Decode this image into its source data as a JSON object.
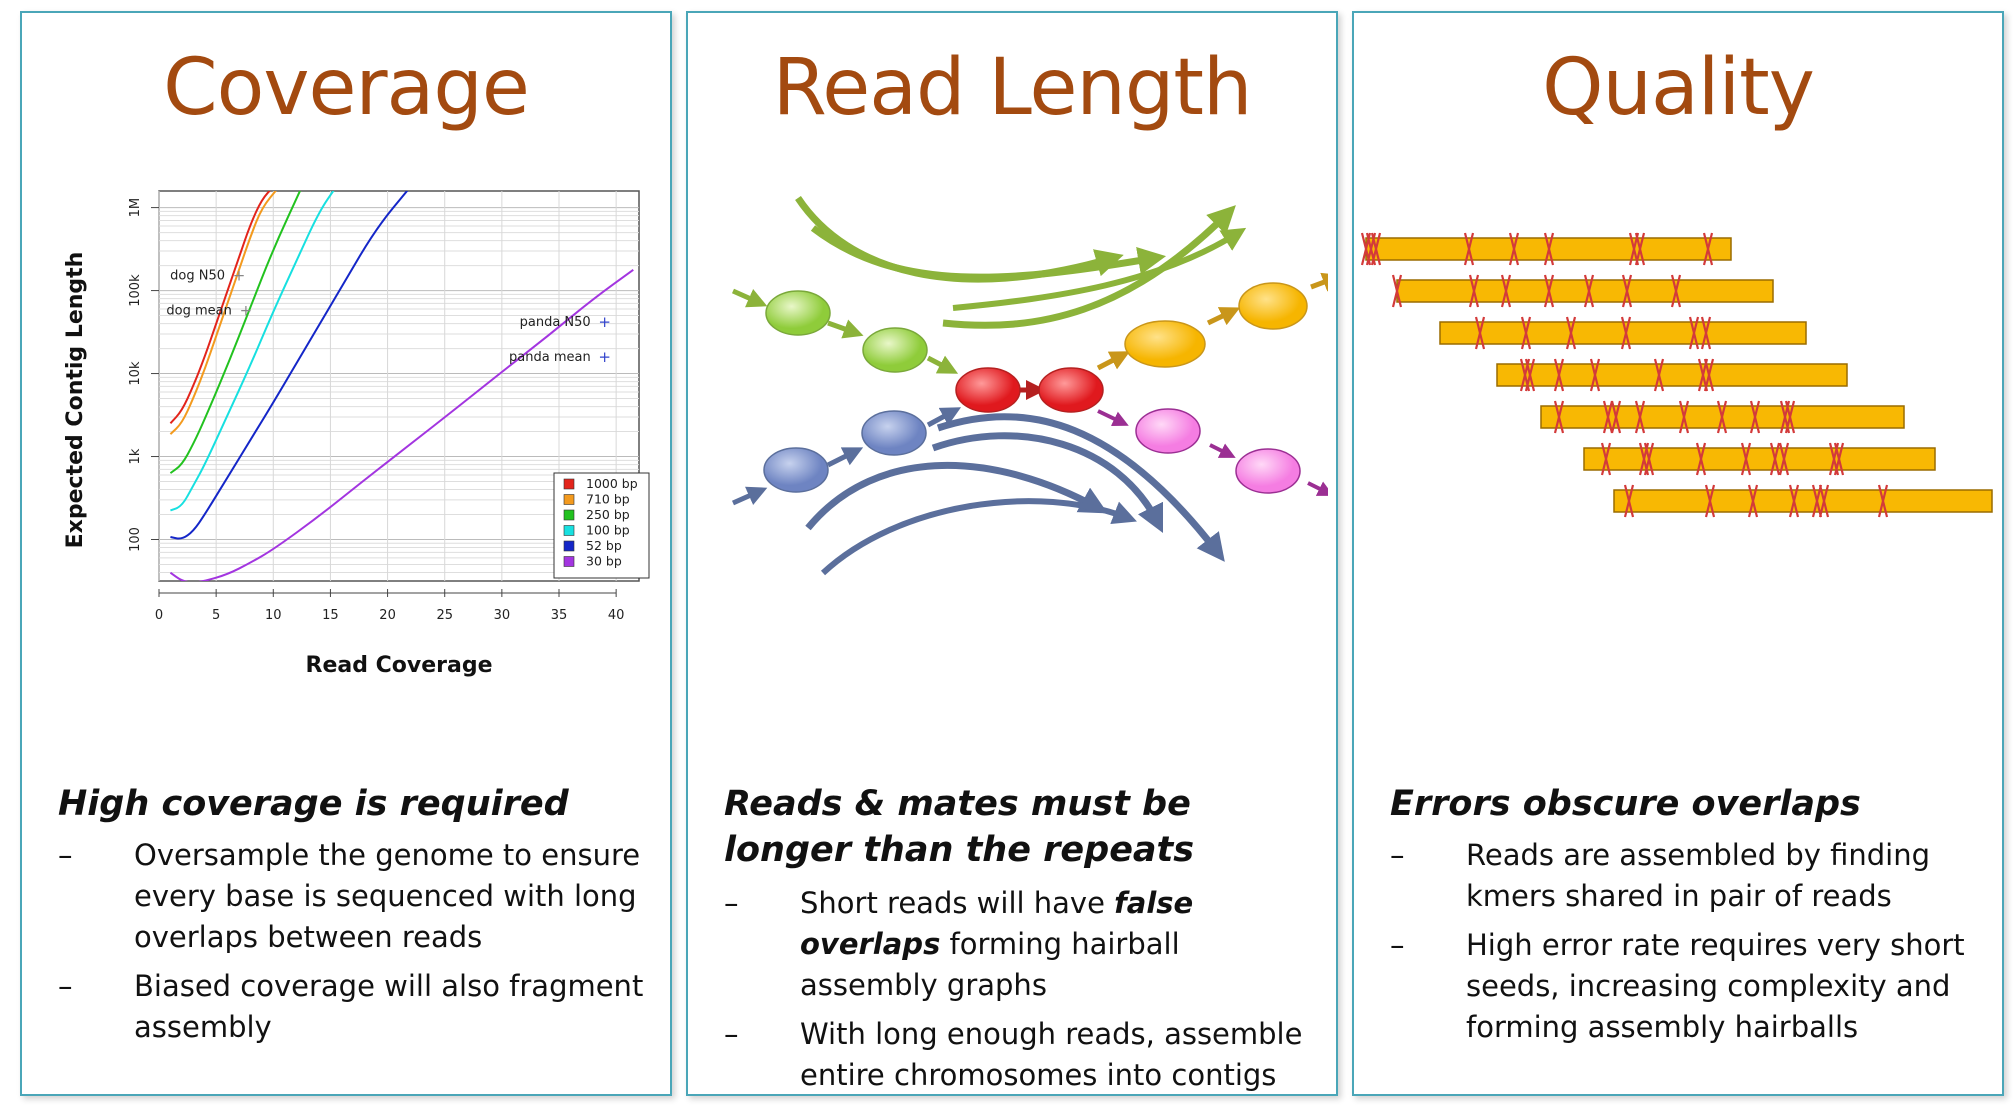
{
  "panels": {
    "coverage": {
      "title": "Coverage",
      "heading": "High coverage is required",
      "bullets": [
        "Oversample the genome to ensure every base is sequenced with long overlaps between reads",
        "Biased coverage will also fragment assembly"
      ]
    },
    "read_length": {
      "title": "Read Length",
      "heading": "Reads & mates must be longer than the repeats",
      "bullet1_pre": "Short reads will have ",
      "bullet1_em": "false overlaps",
      "bullet1_post": " forming hairball assembly graphs",
      "bullet2": "With long enough reads, assemble entire chromosomes into contigs"
    },
    "quality": {
      "title": "Quality",
      "heading": "Errors obscure overlaps",
      "bullets": [
        "Reads are assembled by finding kmers shared in pair of reads",
        "High error rate requires very short seeds, increasing complexity and forming assembly hairballs"
      ]
    }
  },
  "dash": "–",
  "chart_data": {
    "type": "line",
    "xlabel": "Read Coverage",
    "ylabel": "Expected Contig Length",
    "xlim": [
      0,
      42
    ],
    "ylim_log10": [
      1.5,
      6.2
    ],
    "xticks": [
      0,
      5,
      10,
      15,
      20,
      25,
      30,
      35,
      40
    ],
    "yticks": [
      {
        "label": "100",
        "log": 2
      },
      {
        "label": "1k",
        "log": 3
      },
      {
        "label": "10k",
        "log": 4
      },
      {
        "label": "100k",
        "log": 5
      },
      {
        "label": "1M",
        "log": 6
      }
    ],
    "grid": true,
    "legend_position": "bottom-right",
    "series": [
      {
        "name": "1000 bp",
        "color": "#e3241b",
        "x": [
          1,
          2,
          3,
          4,
          5,
          6,
          7,
          8,
          9,
          10
        ],
        "y_log10": [
          3.4,
          3.55,
          3.85,
          4.2,
          4.6,
          5.0,
          5.4,
          5.8,
          6.1,
          6.25
        ]
      },
      {
        "name": "710 bp",
        "color": "#f39a1e",
        "x": [
          1,
          2,
          3,
          4,
          5,
          6,
          7,
          8,
          9,
          10.5
        ],
        "y_log10": [
          3.27,
          3.4,
          3.7,
          4.05,
          4.45,
          4.85,
          5.25,
          5.65,
          6.0,
          6.25
        ]
      },
      {
        "name": "250 bp",
        "color": "#22c21f",
        "x": [
          1,
          2,
          3,
          4,
          6,
          8,
          10,
          12.5
        ],
        "y_log10": [
          2.8,
          2.9,
          3.15,
          3.45,
          4.1,
          4.8,
          5.5,
          6.25
        ]
      },
      {
        "name": "100 bp",
        "color": "#17e0e0",
        "x": [
          1,
          2,
          3,
          4,
          6,
          8,
          10,
          12,
          14,
          15.5
        ],
        "y_log10": [
          2.35,
          2.4,
          2.65,
          2.9,
          3.5,
          4.1,
          4.75,
          5.35,
          5.95,
          6.25
        ]
      },
      {
        "name": "52 bp",
        "color": "#1426c8",
        "x": [
          1,
          2,
          3,
          4,
          6,
          8,
          10,
          13,
          16,
          19,
          22
        ],
        "y_log10": [
          2.03,
          2.0,
          2.1,
          2.3,
          2.75,
          3.2,
          3.65,
          4.35,
          5.05,
          5.75,
          6.25
        ]
      },
      {
        "name": "30 bp",
        "color": "#a335e0",
        "x": [
          1,
          2,
          3,
          4,
          6,
          8,
          10,
          14,
          18,
          22,
          26,
          30,
          34,
          38,
          41.5
        ],
        "y_log10": [
          1.6,
          1.5,
          1.48,
          1.5,
          1.58,
          1.72,
          1.88,
          2.28,
          2.72,
          3.15,
          3.58,
          4.02,
          4.45,
          4.9,
          5.25
        ]
      }
    ],
    "annotations": [
      {
        "label": "dog N50",
        "x": 7,
        "y_log10": 5.18,
        "marker": "+"
      },
      {
        "label": "dog mean",
        "x": 7.6,
        "y_log10": 4.76,
        "marker": "+"
      },
      {
        "label": "panda N50",
        "x": 39,
        "y_log10": 4.62,
        "marker": "+"
      },
      {
        "label": "panda mean",
        "x": 39,
        "y_log10": 4.2,
        "marker": "+"
      }
    ]
  },
  "read_length_diagram": {
    "nodes": [
      {
        "name": "green-node-1",
        "color": "green"
      },
      {
        "name": "green-node-2",
        "color": "green"
      },
      {
        "name": "red-node-1",
        "color": "red"
      },
      {
        "name": "red-node-2",
        "color": "red"
      },
      {
        "name": "yellow-node-1",
        "color": "yellow"
      },
      {
        "name": "yellow-node-2",
        "color": "yellow"
      },
      {
        "name": "blue-node-1",
        "color": "blue"
      },
      {
        "name": "blue-node-2",
        "color": "blue"
      },
      {
        "name": "pink-node-1",
        "color": "pink"
      },
      {
        "name": "pink-node-2",
        "color": "pink"
      }
    ]
  },
  "quality_diagram": {
    "read_count": 7,
    "errors_per_read": [
      9,
      7,
      6,
      7,
      9,
      9,
      7
    ]
  }
}
